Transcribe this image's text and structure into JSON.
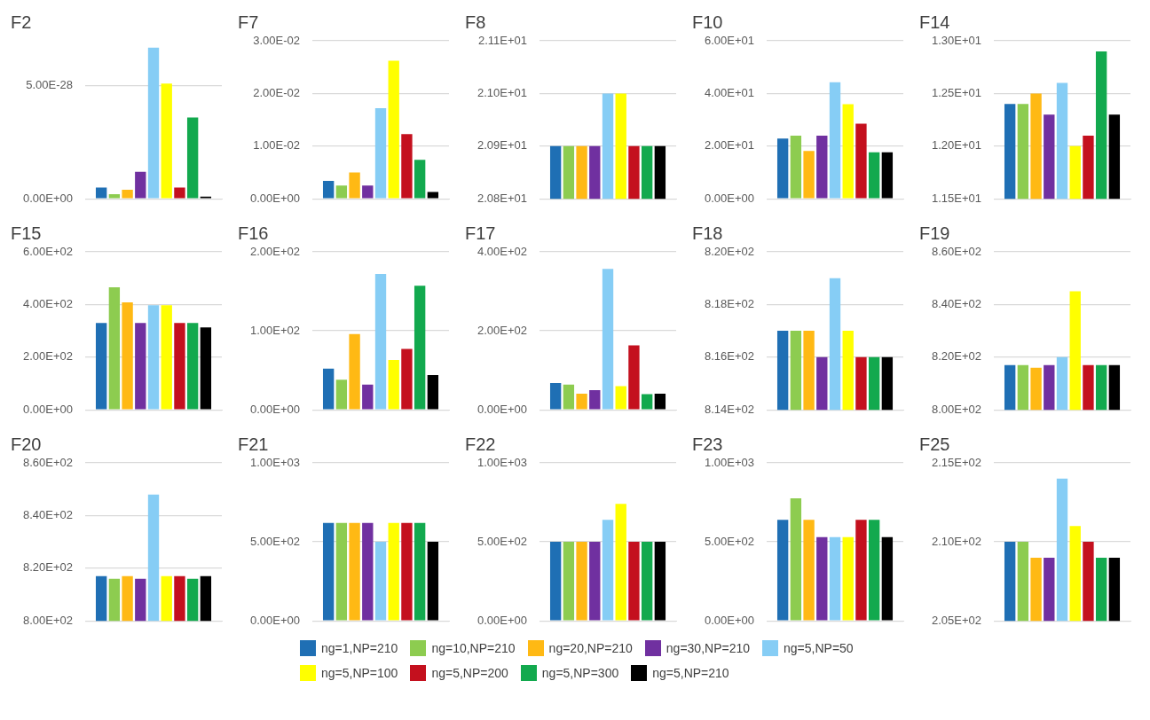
{
  "chart_data": [
    {
      "type": "bar",
      "title": "F2",
      "categories": [
        null
      ],
      "ylim": [
        0,
        7e-28
      ],
      "yticks": [
        {
          "value": 0,
          "label": "0.00E+00"
        },
        {
          "value": 5e-28,
          "label": "5.00E-28"
        }
      ],
      "grid": "y",
      "legend": "bottom",
      "series": [
        {
          "name": "ng=1,NP=210",
          "color": "#1f6fb4",
          "values": [
            5e-29
          ]
        },
        {
          "name": "ng=10,NP=210",
          "color": "#8dcc50",
          "values": [
            2e-29
          ]
        },
        {
          "name": "ng=20,NP=210",
          "color": "#ffb914",
          "values": [
            4e-29
          ]
        },
        {
          "name": "ng=30,NP=210",
          "color": "#7030a0",
          "values": [
            1.2e-28
          ]
        },
        {
          "name": "ng=5,NP=50",
          "color": "#86cdf5",
          "values": [
            6.7e-28
          ]
        },
        {
          "name": "ng=5,NP=100",
          "color": "#ffff00",
          "values": [
            5.1e-28
          ]
        },
        {
          "name": "ng=5,NP=200",
          "color": "#c4101e",
          "values": [
            5e-29
          ]
        },
        {
          "name": "ng=5,NP=300",
          "color": "#12a94e",
          "values": [
            3.6e-28
          ]
        },
        {
          "name": "ng=5,NP=210",
          "color": "#000000",
          "values": [
            1e-29
          ]
        }
      ]
    },
    {
      "type": "bar",
      "title": "F7",
      "categories": [
        null
      ],
      "ylim": [
        0,
        0.03
      ],
      "yticks": [
        {
          "value": 0,
          "label": "0.00E+00"
        },
        {
          "value": 0.01,
          "label": "1.00E-02"
        },
        {
          "value": 0.02,
          "label": "2.00E-02"
        },
        {
          "value": 0.03,
          "label": "3.00E-02"
        }
      ],
      "grid": "y",
      "series": [
        {
          "color": "#1f6fb4",
          "values": [
            0.0034
          ]
        },
        {
          "color": "#8dcc50",
          "values": [
            0.0025
          ]
        },
        {
          "color": "#ffb914",
          "values": [
            0.005
          ]
        },
        {
          "color": "#7030a0",
          "values": [
            0.0025
          ]
        },
        {
          "color": "#86cdf5",
          "values": [
            0.0172
          ]
        },
        {
          "color": "#ffff00",
          "values": [
            0.0262
          ]
        },
        {
          "color": "#c4101e",
          "values": [
            0.0123
          ]
        },
        {
          "color": "#12a94e",
          "values": [
            0.0074
          ]
        },
        {
          "color": "#000000",
          "values": [
            0.0013
          ]
        }
      ]
    },
    {
      "type": "bar",
      "title": "F8",
      "categories": [
        null
      ],
      "ylim": [
        20.8,
        21.1
      ],
      "yticks": [
        {
          "value": 20.8,
          "label": "2.08E+01"
        },
        {
          "value": 20.9,
          "label": "2.09E+01"
        },
        {
          "value": 21.0,
          "label": "2.10E+01"
        },
        {
          "value": 21.1,
          "label": "2.11E+01"
        }
      ],
      "grid": "y",
      "series": [
        {
          "color": "#1f6fb4",
          "values": [
            20.9
          ]
        },
        {
          "color": "#8dcc50",
          "values": [
            20.9
          ]
        },
        {
          "color": "#ffb914",
          "values": [
            20.9
          ]
        },
        {
          "color": "#7030a0",
          "values": [
            20.9
          ]
        },
        {
          "color": "#86cdf5",
          "values": [
            21.0
          ]
        },
        {
          "color": "#ffff00",
          "values": [
            21.0
          ]
        },
        {
          "color": "#c4101e",
          "values": [
            20.9
          ]
        },
        {
          "color": "#12a94e",
          "values": [
            20.9
          ]
        },
        {
          "color": "#000000",
          "values": [
            20.9
          ]
        }
      ]
    },
    {
      "type": "bar",
      "title": "F10",
      "categories": [
        null
      ],
      "ylim": [
        0,
        60
      ],
      "yticks": [
        {
          "value": 0,
          "label": "0.00E+00"
        },
        {
          "value": 20,
          "label": "2.00E+01"
        },
        {
          "value": 40,
          "label": "4.00E+01"
        },
        {
          "value": 60,
          "label": "6.00E+01"
        }
      ],
      "grid": "y",
      "series": [
        {
          "color": "#1f6fb4",
          "values": [
            22.9
          ]
        },
        {
          "color": "#8dcc50",
          "values": [
            24.0
          ]
        },
        {
          "color": "#ffb914",
          "values": [
            18.2
          ]
        },
        {
          "color": "#7030a0",
          "values": [
            24.0
          ]
        },
        {
          "color": "#86cdf5",
          "values": [
            44.3
          ]
        },
        {
          "color": "#ffff00",
          "values": [
            35.9
          ]
        },
        {
          "color": "#c4101e",
          "values": [
            28.5
          ]
        },
        {
          "color": "#12a94e",
          "values": [
            17.7
          ]
        },
        {
          "color": "#000000",
          "values": [
            17.7
          ]
        }
      ]
    },
    {
      "type": "bar",
      "title": "F14",
      "categories": [
        null
      ],
      "ylim": [
        11.5,
        13.0
      ],
      "yticks": [
        {
          "value": 11.5,
          "label": "1.15E+01"
        },
        {
          "value": 12.0,
          "label": "1.20E+01"
        },
        {
          "value": 12.5,
          "label": "1.25E+01"
        },
        {
          "value": 13.0,
          "label": "1.30E+01"
        }
      ],
      "grid": "y",
      "series": [
        {
          "color": "#1f6fb4",
          "values": [
            12.4
          ]
        },
        {
          "color": "#8dcc50",
          "values": [
            12.4
          ]
        },
        {
          "color": "#ffb914",
          "values": [
            12.5
          ]
        },
        {
          "color": "#7030a0",
          "values": [
            12.3
          ]
        },
        {
          "color": "#86cdf5",
          "values": [
            12.6
          ]
        },
        {
          "color": "#ffff00",
          "values": [
            12.0
          ]
        },
        {
          "color": "#c4101e",
          "values": [
            12.1
          ]
        },
        {
          "color": "#12a94e",
          "values": [
            12.9
          ]
        },
        {
          "color": "#000000",
          "values": [
            12.3
          ]
        }
      ]
    },
    {
      "type": "bar",
      "title": "F15",
      "categories": [
        null
      ],
      "ylim": [
        0,
        600
      ],
      "yticks": [
        {
          "value": 0,
          "label": "0.00E+00"
        },
        {
          "value": 200,
          "label": "2.00E+02"
        },
        {
          "value": 400,
          "label": "4.00E+02"
        },
        {
          "value": 600,
          "label": "6.00E+02"
        }
      ],
      "grid": "y",
      "series": [
        {
          "color": "#1f6fb4",
          "values": [
            330
          ]
        },
        {
          "color": "#8dcc50",
          "values": [
            465
          ]
        },
        {
          "color": "#ffb914",
          "values": [
            408
          ]
        },
        {
          "color": "#7030a0",
          "values": [
            330
          ]
        },
        {
          "color": "#86cdf5",
          "values": [
            397
          ]
        },
        {
          "color": "#ffff00",
          "values": [
            397
          ]
        },
        {
          "color": "#c4101e",
          "values": [
            330
          ]
        },
        {
          "color": "#12a94e",
          "values": [
            330
          ]
        },
        {
          "color": "#000000",
          "values": [
            313
          ]
        }
      ]
    },
    {
      "type": "bar",
      "title": "F16",
      "categories": [
        null
      ],
      "ylim": [
        0,
        200
      ],
      "yticks": [
        {
          "value": 0,
          "label": "0.00E+00"
        },
        {
          "value": 100,
          "label": "1.00E+02"
        },
        {
          "value": 200,
          "label": "2.00E+02"
        }
      ],
      "grid": "y",
      "series": [
        {
          "color": "#1f6fb4",
          "values": [
            52
          ]
        },
        {
          "color": "#8dcc50",
          "values": [
            38
          ]
        },
        {
          "color": "#ffb914",
          "values": [
            96
          ]
        },
        {
          "color": "#7030a0",
          "values": [
            32
          ]
        },
        {
          "color": "#86cdf5",
          "values": [
            172
          ]
        },
        {
          "color": "#ffff00",
          "values": [
            63
          ]
        },
        {
          "color": "#c4101e",
          "values": [
            77
          ]
        },
        {
          "color": "#12a94e",
          "values": [
            157
          ]
        },
        {
          "color": "#000000",
          "values": [
            44
          ]
        }
      ]
    },
    {
      "type": "bar",
      "title": "F17",
      "categories": [
        null
      ],
      "ylim": [
        0,
        400
      ],
      "yticks": [
        {
          "value": 0,
          "label": "0.00E+00"
        },
        {
          "value": 200,
          "label": "2.00E+02"
        },
        {
          "value": 400,
          "label": "4.00E+02"
        }
      ],
      "grid": "y",
      "series": [
        {
          "color": "#1f6fb4",
          "values": [
            68
          ]
        },
        {
          "color": "#8dcc50",
          "values": [
            64
          ]
        },
        {
          "color": "#ffb914",
          "values": [
            41
          ]
        },
        {
          "color": "#7030a0",
          "values": [
            50
          ]
        },
        {
          "color": "#86cdf5",
          "values": [
            357
          ]
        },
        {
          "color": "#ffff00",
          "values": [
            60
          ]
        },
        {
          "color": "#c4101e",
          "values": [
            163
          ]
        },
        {
          "color": "#12a94e",
          "values": [
            40
          ]
        },
        {
          "color": "#000000",
          "values": [
            41
          ]
        }
      ]
    },
    {
      "type": "bar",
      "title": "F18",
      "categories": [
        null
      ],
      "ylim": [
        814,
        820
      ],
      "yticks": [
        {
          "value": 814,
          "label": "8.14E+02"
        },
        {
          "value": 816,
          "label": "8.16E+02"
        },
        {
          "value": 818,
          "label": "8.18E+02"
        },
        {
          "value": 820,
          "label": "8.20E+02"
        }
      ],
      "grid": "y",
      "series": [
        {
          "color": "#1f6fb4",
          "values": [
            817
          ]
        },
        {
          "color": "#8dcc50",
          "values": [
            817
          ]
        },
        {
          "color": "#ffb914",
          "values": [
            817
          ]
        },
        {
          "color": "#7030a0",
          "values": [
            816
          ]
        },
        {
          "color": "#86cdf5",
          "values": [
            819
          ]
        },
        {
          "color": "#ffff00",
          "values": [
            817
          ]
        },
        {
          "color": "#c4101e",
          "values": [
            816
          ]
        },
        {
          "color": "#12a94e",
          "values": [
            816
          ]
        },
        {
          "color": "#000000",
          "values": [
            816
          ]
        }
      ]
    },
    {
      "type": "bar",
      "title": "F19",
      "categories": [
        null
      ],
      "ylim": [
        800,
        860
      ],
      "yticks": [
        {
          "value": 800,
          "label": "8.00E+02"
        },
        {
          "value": 820,
          "label": "8.20E+02"
        },
        {
          "value": 840,
          "label": "8.40E+02"
        },
        {
          "value": 860,
          "label": "8.60E+02"
        }
      ],
      "grid": "y",
      "series": [
        {
          "color": "#1f6fb4",
          "values": [
            817
          ]
        },
        {
          "color": "#8dcc50",
          "values": [
            817
          ]
        },
        {
          "color": "#ffb914",
          "values": [
            816
          ]
        },
        {
          "color": "#7030a0",
          "values": [
            817
          ]
        },
        {
          "color": "#86cdf5",
          "values": [
            820
          ]
        },
        {
          "color": "#ffff00",
          "values": [
            845
          ]
        },
        {
          "color": "#c4101e",
          "values": [
            817
          ]
        },
        {
          "color": "#12a94e",
          "values": [
            817
          ]
        },
        {
          "color": "#000000",
          "values": [
            817
          ]
        }
      ]
    },
    {
      "type": "bar",
      "title": "F20",
      "categories": [
        null
      ],
      "ylim": [
        800,
        860
      ],
      "yticks": [
        {
          "value": 800,
          "label": "8.00E+02"
        },
        {
          "value": 820,
          "label": "8.20E+02"
        },
        {
          "value": 840,
          "label": "8.40E+02"
        },
        {
          "value": 860,
          "label": "8.60E+02"
        }
      ],
      "grid": "y",
      "series": [
        {
          "color": "#1f6fb4",
          "values": [
            817
          ]
        },
        {
          "color": "#8dcc50",
          "values": [
            816
          ]
        },
        {
          "color": "#ffb914",
          "values": [
            817
          ]
        },
        {
          "color": "#7030a0",
          "values": [
            816
          ]
        },
        {
          "color": "#86cdf5",
          "values": [
            848
          ]
        },
        {
          "color": "#ffff00",
          "values": [
            817
          ]
        },
        {
          "color": "#c4101e",
          "values": [
            817
          ]
        },
        {
          "color": "#12a94e",
          "values": [
            816
          ]
        },
        {
          "color": "#000000",
          "values": [
            817
          ]
        }
      ]
    },
    {
      "type": "bar",
      "title": "F21",
      "categories": [
        null
      ],
      "ylim": [
        0,
        1000
      ],
      "yticks": [
        {
          "value": 0,
          "label": "0.00E+00"
        },
        {
          "value": 500,
          "label": "5.00E+02"
        },
        {
          "value": 1000,
          "label": "1.00E+03"
        }
      ],
      "grid": "y",
      "series": [
        {
          "color": "#1f6fb4",
          "values": [
            620
          ]
        },
        {
          "color": "#8dcc50",
          "values": [
            620
          ]
        },
        {
          "color": "#ffb914",
          "values": [
            620
          ]
        },
        {
          "color": "#7030a0",
          "values": [
            620
          ]
        },
        {
          "color": "#86cdf5",
          "values": [
            500
          ]
        },
        {
          "color": "#ffff00",
          "values": [
            620
          ]
        },
        {
          "color": "#c4101e",
          "values": [
            620
          ]
        },
        {
          "color": "#12a94e",
          "values": [
            620
          ]
        },
        {
          "color": "#000000",
          "values": [
            500
          ]
        }
      ]
    },
    {
      "type": "bar",
      "title": "F22",
      "categories": [
        null
      ],
      "ylim": [
        0,
        1000
      ],
      "yticks": [
        {
          "value": 0,
          "label": "0.00E+00"
        },
        {
          "value": 500,
          "label": "5.00E+02"
        },
        {
          "value": 1000,
          "label": "1.00E+03"
        }
      ],
      "grid": "y",
      "series": [
        {
          "color": "#1f6fb4",
          "values": [
            500
          ]
        },
        {
          "color": "#8dcc50",
          "values": [
            500
          ]
        },
        {
          "color": "#ffb914",
          "values": [
            500
          ]
        },
        {
          "color": "#7030a0",
          "values": [
            500
          ]
        },
        {
          "color": "#86cdf5",
          "values": [
            640
          ]
        },
        {
          "color": "#ffff00",
          "values": [
            740
          ]
        },
        {
          "color": "#c4101e",
          "values": [
            500
          ]
        },
        {
          "color": "#12a94e",
          "values": [
            500
          ]
        },
        {
          "color": "#000000",
          "values": [
            500
          ]
        }
      ]
    },
    {
      "type": "bar",
      "title": "F23",
      "categories": [
        null
      ],
      "ylim": [
        0,
        1000
      ],
      "yticks": [
        {
          "value": 0,
          "label": "0.00E+00"
        },
        {
          "value": 500,
          "label": "5.00E+02"
        },
        {
          "value": 1000,
          "label": "1.00E+03"
        }
      ],
      "grid": "y",
      "series": [
        {
          "color": "#1f6fb4",
          "values": [
            640
          ]
        },
        {
          "color": "#8dcc50",
          "values": [
            775
          ]
        },
        {
          "color": "#ffb914",
          "values": [
            640
          ]
        },
        {
          "color": "#7030a0",
          "values": [
            530
          ]
        },
        {
          "color": "#86cdf5",
          "values": [
            530
          ]
        },
        {
          "color": "#ffff00",
          "values": [
            530
          ]
        },
        {
          "color": "#c4101e",
          "values": [
            640
          ]
        },
        {
          "color": "#12a94e",
          "values": [
            640
          ]
        },
        {
          "color": "#000000",
          "values": [
            530
          ]
        }
      ]
    },
    {
      "type": "bar",
      "title": "F25",
      "categories": [
        null
      ],
      "ylim": [
        205,
        215
      ],
      "yticks": [
        {
          "value": 205,
          "label": "2.05E+02"
        },
        {
          "value": 210,
          "label": "2.10E+02"
        },
        {
          "value": 215,
          "label": "2.15E+02"
        }
      ],
      "grid": "y",
      "series": [
        {
          "color": "#1f6fb4",
          "values": [
            210
          ]
        },
        {
          "color": "#8dcc50",
          "values": [
            210
          ]
        },
        {
          "color": "#ffb914",
          "values": [
            209
          ]
        },
        {
          "color": "#7030a0",
          "values": [
            209
          ]
        },
        {
          "color": "#86cdf5",
          "values": [
            214
          ]
        },
        {
          "color": "#ffff00",
          "values": [
            211
          ]
        },
        {
          "color": "#c4101e",
          "values": [
            210
          ]
        },
        {
          "color": "#12a94e",
          "values": [
            209
          ]
        },
        {
          "color": "#000000",
          "values": [
            209
          ]
        }
      ]
    }
  ]
}
